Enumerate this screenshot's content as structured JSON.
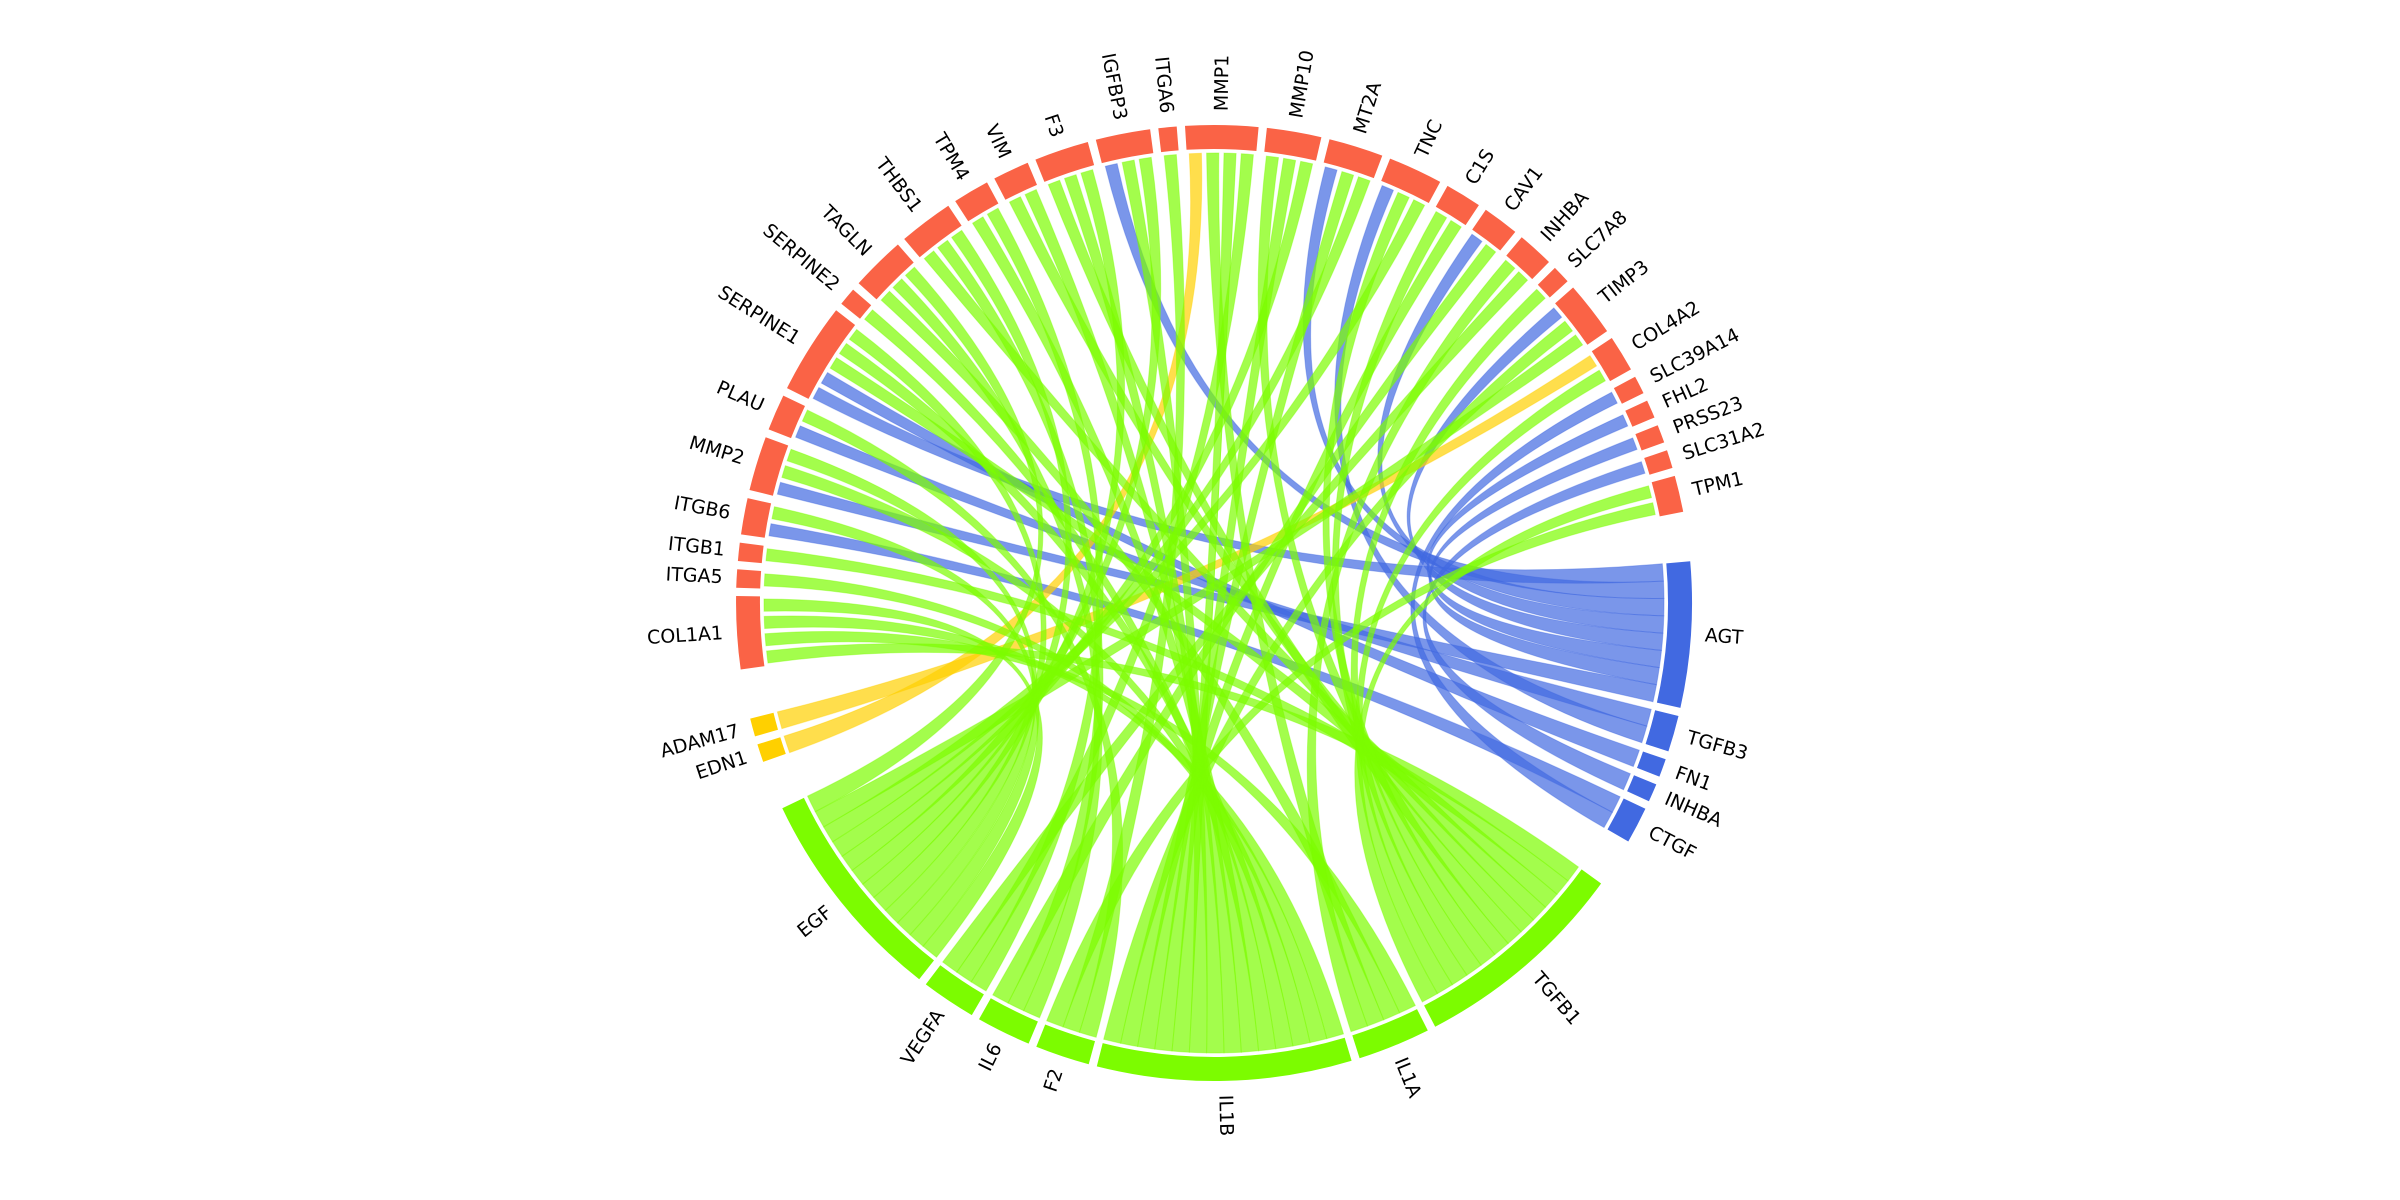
{
  "groups": [
    {
      "color": "#fa6346"
    },
    {
      "color": "#4169e1"
    },
    {
      "color": "#7cfc00"
    },
    {
      "color": "#ffd000"
    }
  ],
  "nodes": [
    {
      "label": "COL1A1",
      "group": 0
    },
    {
      "label": "ITGA5",
      "group": 0
    },
    {
      "label": "ITGB1",
      "group": 0
    },
    {
      "label": "ITGB6",
      "group": 0
    },
    {
      "label": "MMP2",
      "group": 0
    },
    {
      "label": "PLAU",
      "group": 0
    },
    {
      "label": "SERPINE1",
      "group": 0
    },
    {
      "label": "SERPINE2",
      "group": 0
    },
    {
      "label": "TAGLN",
      "group": 0
    },
    {
      "label": "THBS1",
      "group": 0
    },
    {
      "label": "TPM4",
      "group": 0
    },
    {
      "label": "VIM",
      "group": 0
    },
    {
      "label": "F3",
      "group": 0
    },
    {
      "label": "IGFBP3",
      "group": 0
    },
    {
      "label": "ITGA6",
      "group": 0
    },
    {
      "label": "MMP1",
      "group": 0
    },
    {
      "label": "MMP10",
      "group": 0
    },
    {
      "label": "MT2A",
      "group": 0
    },
    {
      "label": "TNC",
      "group": 0
    },
    {
      "label": "C1S",
      "group": 0
    },
    {
      "label": "CAV1",
      "group": 0
    },
    {
      "label": "INHBA",
      "group": 0
    },
    {
      "label": "SLC7A8",
      "group": 0
    },
    {
      "label": "TIMP3",
      "group": 0
    },
    {
      "label": "COL4A2",
      "group": 0
    },
    {
      "label": "SLC39A14",
      "group": 0
    },
    {
      "label": "FHL2",
      "group": 0
    },
    {
      "label": "PRSS23",
      "group": 0
    },
    {
      "label": "SLC31A2",
      "group": 0
    },
    {
      "label": "TPM1",
      "group": 0
    },
    {
      "label": "AGT",
      "group": 1
    },
    {
      "label": "TGFB3",
      "group": 1
    },
    {
      "label": "FN1",
      "group": 1
    },
    {
      "label": "INHBA",
      "group": 1
    },
    {
      "label": "CTGF",
      "group": 1
    },
    {
      "label": "TGFB1",
      "group": 2
    },
    {
      "label": "IL1A",
      "group": 2
    },
    {
      "label": "IL1B",
      "group": 2
    },
    {
      "label": "F2",
      "group": 2
    },
    {
      "label": "IL6",
      "group": 2
    },
    {
      "label": "VEGFA",
      "group": 2
    },
    {
      "label": "EGF",
      "group": 2
    },
    {
      "label": "EDN1",
      "group": 3
    },
    {
      "label": "ADAM17",
      "group": 3
    }
  ],
  "links": [
    [
      30,
      6
    ],
    [
      30,
      13
    ],
    [
      30,
      17
    ],
    [
      30,
      20
    ],
    [
      30,
      23
    ],
    [
      30,
      26
    ],
    [
      30,
      27
    ],
    [
      30,
      4
    ],
    [
      31,
      5
    ],
    [
      31,
      18
    ],
    [
      32,
      6
    ],
    [
      33,
      28
    ],
    [
      34,
      3
    ],
    [
      34,
      25
    ],
    [
      42,
      15
    ],
    [
      43,
      24
    ],
    [
      35,
      0
    ],
    [
      35,
      2
    ],
    [
      35,
      6
    ],
    [
      35,
      9
    ],
    [
      35,
      11
    ],
    [
      35,
      12
    ],
    [
      35,
      16
    ],
    [
      35,
      18
    ],
    [
      35,
      19
    ],
    [
      35,
      22
    ],
    [
      35,
      24
    ],
    [
      35,
      29
    ],
    [
      36,
      0
    ],
    [
      36,
      8
    ],
    [
      36,
      15
    ],
    [
      36,
      21
    ],
    [
      37,
      0
    ],
    [
      37,
      1
    ],
    [
      37,
      4
    ],
    [
      37,
      6
    ],
    [
      37,
      7
    ],
    [
      37,
      10
    ],
    [
      37,
      11
    ],
    [
      37,
      12
    ],
    [
      37,
      13
    ],
    [
      37,
      15
    ],
    [
      37,
      16
    ],
    [
      37,
      17
    ],
    [
      37,
      19
    ],
    [
      37,
      23
    ],
    [
      38,
      5
    ],
    [
      38,
      14
    ],
    [
      38,
      29
    ],
    [
      39,
      8
    ],
    [
      39,
      9
    ],
    [
      39,
      20
    ],
    [
      40,
      10
    ],
    [
      40,
      15
    ],
    [
      40,
      21
    ],
    [
      41,
      0
    ],
    [
      41,
      3
    ],
    [
      41,
      4
    ],
    [
      41,
      6
    ],
    [
      41,
      9
    ],
    [
      41,
      12
    ],
    [
      41,
      13
    ],
    [
      41,
      16
    ],
    [
      41,
      17
    ],
    [
      41,
      18
    ],
    [
      41,
      23
    ],
    [
      41,
      8
    ]
  ]
}
